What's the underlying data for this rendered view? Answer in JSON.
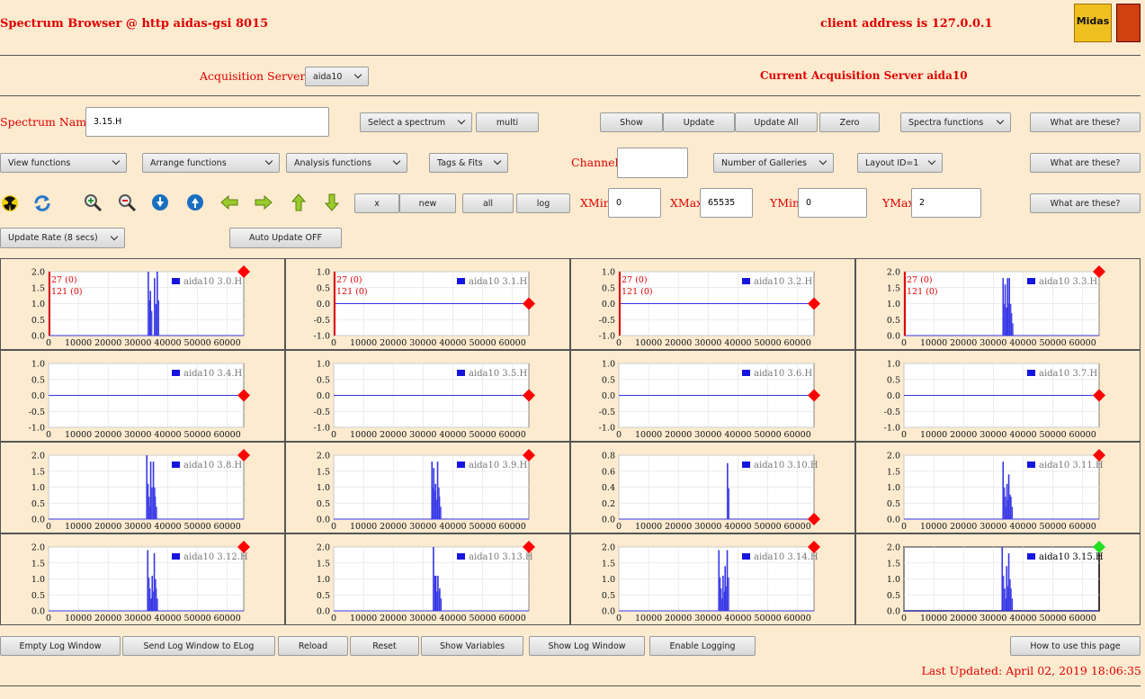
{
  "header": {
    "title": "Spectrum Browser @ http aidas-gsi 8015",
    "client_address": "client address is 127.0.0.1",
    "logo_text": "Midas"
  },
  "acquisition": {
    "label": "Acquisition Servers",
    "server_select": "aida10",
    "current": "Current Acquisition Server aida10"
  },
  "spectrum_row": {
    "name_label": "Spectrum Name:",
    "name_value": "3.15.H",
    "select_spectrum": "Select a spectrum",
    "multi": "multi",
    "show": "Show",
    "update": "Update",
    "update_all": "Update All",
    "zero": "Zero",
    "spectra_functions": "Spectra functions",
    "what_are_these": "What are these?"
  },
  "functions_row": {
    "view": "View functions",
    "arrange": "Arrange functions",
    "analysis": "Analysis functions",
    "tags_fits": "Tags & Fits",
    "channel_label": "Channel:",
    "channel_value": "",
    "galleries": "Number of Galleries",
    "layout": "Layout ID=1",
    "what_are_these": "What are these?"
  },
  "zoom_row": {
    "x": "x",
    "new": "new",
    "all": "all",
    "log": "log",
    "xmin_label": "XMin",
    "xmin_value": "0",
    "xmax_label": "XMax",
    "xmax_value": "65535",
    "ymin_label": "YMin",
    "ymin_value": "0",
    "ymax_label": "YMax",
    "ymax_value": "2",
    "what_are_these": "What are these?"
  },
  "rate_row": {
    "update_rate": "Update Rate (8 secs)",
    "auto_update": "Auto Update OFF"
  },
  "icons": [
    "radiation-icon",
    "refresh-icon",
    "zoom-in-icon",
    "zoom-out-icon",
    "expand-down-icon",
    "expand-up-icon",
    "arrow-left-icon",
    "arrow-right-icon",
    "arrow-up-icon",
    "arrow-down-icon"
  ],
  "colors": {
    "accent": "#e00000",
    "trace": "#3535e6",
    "background": "#fdebd0",
    "marker_red": "#ff0000",
    "marker_green": "#22e022"
  },
  "chart_data": [
    {
      "type": "line",
      "title": "aida10 3.0.H",
      "x_ticks": [
        "0",
        "10000",
        "20000",
        "30000",
        "40000",
        "50000",
        "60000"
      ],
      "y_ticks": [
        "0.0",
        "0.5",
        "1.0",
        "1.5",
        "2.0"
      ],
      "ylim": [
        0,
        2
      ],
      "xlim": [
        0,
        65535
      ],
      "marker": "red",
      "tags": [
        "27 (0)",
        "121 (0)"
      ],
      "peaks": [
        [
          33500,
          2
        ],
        [
          34200,
          1.4
        ],
        [
          35600,
          1.8
        ],
        [
          36500,
          2
        ]
      ]
    },
    {
      "type": "line",
      "title": "aida10 3.1.H",
      "x_ticks": [
        "0",
        "10000",
        "20000",
        "30000",
        "40000",
        "50000",
        "60000"
      ],
      "y_ticks": [
        "-1.0",
        "-0.5",
        "0.0",
        "0.5",
        "1.0"
      ],
      "ylim": [
        -1,
        1
      ],
      "xlim": [
        0,
        65535
      ],
      "marker": "red",
      "tags": [
        "27 (0)",
        "121 (0)"
      ],
      "peaks": []
    },
    {
      "type": "line",
      "title": "aida10 3.2.H",
      "x_ticks": [
        "0",
        "10000",
        "20000",
        "30000",
        "40000",
        "50000",
        "60000"
      ],
      "y_ticks": [
        "-1.0",
        "-0.5",
        "0.0",
        "0.5",
        "1.0"
      ],
      "ylim": [
        -1,
        1
      ],
      "xlim": [
        0,
        65535
      ],
      "marker": "red",
      "tags": [
        "27 (0)",
        "121 (0)"
      ],
      "peaks": []
    },
    {
      "type": "line",
      "title": "aida10 3.3.H",
      "x_ticks": [
        "0",
        "10000",
        "20000",
        "30000",
        "40000",
        "50000",
        "60000"
      ],
      "y_ticks": [
        "0.0",
        "0.5",
        "1.0",
        "1.5",
        "2.0"
      ],
      "ylim": [
        0,
        2
      ],
      "xlim": [
        0,
        65535
      ],
      "marker": "red",
      "tags": [
        "27 (0)",
        "121 (0)"
      ],
      "peaks": [
        [
          33300,
          1.8
        ],
        [
          34000,
          1.6
        ],
        [
          34800,
          1.8
        ],
        [
          35400,
          1.8
        ],
        [
          36100,
          0.7
        ]
      ]
    },
    {
      "type": "line",
      "title": "aida10 3.4.H",
      "x_ticks": [
        "0",
        "10000",
        "20000",
        "30000",
        "40000",
        "50000",
        "60000"
      ],
      "y_ticks": [
        "-1.0",
        "-0.5",
        "0.0",
        "0.5",
        "1.0"
      ],
      "ylim": [
        -1,
        1
      ],
      "xlim": [
        0,
        65535
      ],
      "marker": "red",
      "tags": [],
      "peaks": []
    },
    {
      "type": "line",
      "title": "aida10 3.5.H",
      "x_ticks": [
        "0",
        "10000",
        "20000",
        "30000",
        "40000",
        "50000",
        "60000"
      ],
      "y_ticks": [
        "-1.0",
        "-0.5",
        "0.0",
        "0.5",
        "1.0"
      ],
      "ylim": [
        -1,
        1
      ],
      "xlim": [
        0,
        65535
      ],
      "marker": "red",
      "tags": [],
      "peaks": []
    },
    {
      "type": "line",
      "title": "aida10 3.6.H",
      "x_ticks": [
        "0",
        "10000",
        "20000",
        "30000",
        "40000",
        "50000",
        "60000"
      ],
      "y_ticks": [
        "-1.0",
        "-0.5",
        "0.0",
        "0.5",
        "1.0"
      ],
      "ylim": [
        -1,
        1
      ],
      "xlim": [
        0,
        65535
      ],
      "marker": "red",
      "tags": [],
      "peaks": []
    },
    {
      "type": "line",
      "title": "aida10 3.7.H",
      "x_ticks": [
        "0",
        "10000",
        "20000",
        "30000",
        "40000",
        "50000",
        "60000"
      ],
      "y_ticks": [
        "-1.0",
        "-0.5",
        "0.0",
        "0.5",
        "1.0"
      ],
      "ylim": [
        -1,
        1
      ],
      "xlim": [
        0,
        65535
      ],
      "marker": "red",
      "tags": [],
      "peaks": []
    },
    {
      "type": "line",
      "title": "aida10 3.8.H",
      "x_ticks": [
        "0",
        "10000",
        "20000",
        "30000",
        "40000",
        "50000",
        "60000"
      ],
      "y_ticks": [
        "0.0",
        "0.5",
        "1.0",
        "1.5",
        "2.0"
      ],
      "ylim": [
        0,
        2
      ],
      "xlim": [
        0,
        65535
      ],
      "marker": "red",
      "tags": [],
      "peaks": [
        [
          33000,
          2
        ],
        [
          33700,
          0.7
        ],
        [
          34300,
          1.8
        ],
        [
          35200,
          1.8
        ],
        [
          35800,
          0.7
        ]
      ]
    },
    {
      "type": "line",
      "title": "aida10 3.9.H",
      "x_ticks": [
        "0",
        "10000",
        "20000",
        "30000",
        "40000",
        "50000",
        "60000"
      ],
      "y_ticks": [
        "0.0",
        "0.5",
        "1.0",
        "1.5",
        "2.0"
      ],
      "ylim": [
        0,
        2
      ],
      "xlim": [
        0,
        65535
      ],
      "marker": "red",
      "tags": [],
      "peaks": [
        [
          33000,
          1.8
        ],
        [
          33600,
          1.6
        ],
        [
          34200,
          1.1
        ],
        [
          34900,
          1.8
        ],
        [
          35500,
          0.7
        ]
      ]
    },
    {
      "type": "line",
      "title": "aida10 3.10.H",
      "x_ticks": [
        "0",
        "10000",
        "20000",
        "30000",
        "40000",
        "50000",
        "60000"
      ],
      "y_ticks": [
        "0.0",
        "0.2",
        "0.4",
        "0.6",
        "0.8"
      ],
      "ylim": [
        0,
        0.8
      ],
      "xlim": [
        0,
        65535
      ],
      "marker": "red",
      "tags": [],
      "peaks": [
        [
          36500,
          0.7
        ]
      ]
    },
    {
      "type": "line",
      "title": "aida10 3.11.H",
      "x_ticks": [
        "0",
        "10000",
        "20000",
        "30000",
        "40000",
        "50000",
        "60000"
      ],
      "y_ticks": [
        "0.0",
        "0.5",
        "1.0",
        "1.5",
        "2.0"
      ],
      "ylim": [
        0,
        2
      ],
      "xlim": [
        0,
        65535
      ],
      "marker": "red",
      "tags": [],
      "peaks": [
        [
          33300,
          1.8
        ],
        [
          34000,
          0.7
        ],
        [
          34600,
          1.1
        ],
        [
          35200,
          1.4
        ],
        [
          35900,
          0.7
        ]
      ]
    },
    {
      "type": "line",
      "title": "aida10 3.12.H",
      "x_ticks": [
        "0",
        "10000",
        "20000",
        "30000",
        "40000",
        "50000",
        "60000"
      ],
      "y_ticks": [
        "0.0",
        "0.5",
        "1.0",
        "1.5",
        "2.0"
      ],
      "ylim": [
        0,
        2
      ],
      "xlim": [
        0,
        65535
      ],
      "marker": "red",
      "tags": [],
      "peaks": [
        [
          33300,
          1.9
        ],
        [
          34000,
          0.7
        ],
        [
          34800,
          1.1
        ],
        [
          35500,
          1.8
        ],
        [
          36100,
          0.7
        ]
      ]
    },
    {
      "type": "line",
      "title": "aida10 3.13.H",
      "x_ticks": [
        "0",
        "10000",
        "20000",
        "30000",
        "40000",
        "50000",
        "60000"
      ],
      "y_ticks": [
        "0.0",
        "0.5",
        "1.0",
        "1.5",
        "2.0"
      ],
      "ylim": [
        0,
        2
      ],
      "xlim": [
        0,
        65535
      ],
      "marker": "red",
      "tags": [],
      "peaks": [
        [
          33500,
          2
        ],
        [
          34300,
          1.1
        ],
        [
          35000,
          1.1
        ],
        [
          35600,
          0.7
        ]
      ]
    },
    {
      "type": "line",
      "title": "aida10 3.14.H",
      "x_ticks": [
        "0",
        "10000",
        "20000",
        "30000",
        "40000",
        "50000",
        "60000"
      ],
      "y_ticks": [
        "0.0",
        "0.5",
        "1.0",
        "1.5",
        "2.0"
      ],
      "ylim": [
        0,
        2
      ],
      "xlim": [
        0,
        65535
      ],
      "marker": "red",
      "tags": [],
      "peaks": [
        [
          33600,
          1.9
        ],
        [
          34300,
          0.7
        ],
        [
          35000,
          1.1
        ],
        [
          35700,
          1.4
        ],
        [
          36400,
          1.9
        ]
      ]
    },
    {
      "type": "line",
      "title": "aida10 3.15.H",
      "x_ticks": [
        "0",
        "10000",
        "20000",
        "30000",
        "40000",
        "50000",
        "60000"
      ],
      "y_ticks": [
        "0.0",
        "0.5",
        "1.0",
        "1.5",
        "2.0"
      ],
      "ylim": [
        0,
        2
      ],
      "xlim": [
        0,
        65535
      ],
      "marker": "green",
      "tags": [],
      "peaks": [
        [
          33000,
          2
        ],
        [
          33800,
          0.7
        ],
        [
          34500,
          1.4
        ],
        [
          35200,
          1.8
        ],
        [
          35900,
          0.7
        ]
      ]
    }
  ],
  "footer": {
    "empty_log": "Empty Log Window",
    "send_log": "Send Log Window to ELog",
    "reload": "Reload",
    "reset": "Reset",
    "show_vars": "Show Variables",
    "show_log": "Show Log Window",
    "enable_logging": "Enable Logging",
    "how_to": "How to use this page",
    "last_updated": "Last Updated: April 02, 2019 18:06:35"
  }
}
